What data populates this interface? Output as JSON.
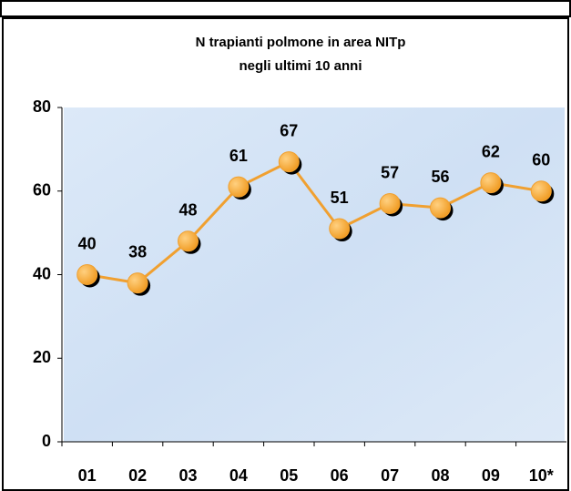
{
  "chart_data": {
    "type": "line",
    "title": "N trapianti polmone in area NITp",
    "subtitle": "negli ultimi 10 anni",
    "categories": [
      "01",
      "02",
      "03",
      "04",
      "05",
      "06",
      "07",
      "08",
      "09",
      "10*"
    ],
    "values": [
      40,
      38,
      48,
      61,
      67,
      51,
      57,
      56,
      62,
      60
    ],
    "color": "#f0a030",
    "ylim": [
      0,
      80
    ],
    "yticks": [
      0,
      20,
      40,
      60,
      80
    ],
    "grid": false
  }
}
